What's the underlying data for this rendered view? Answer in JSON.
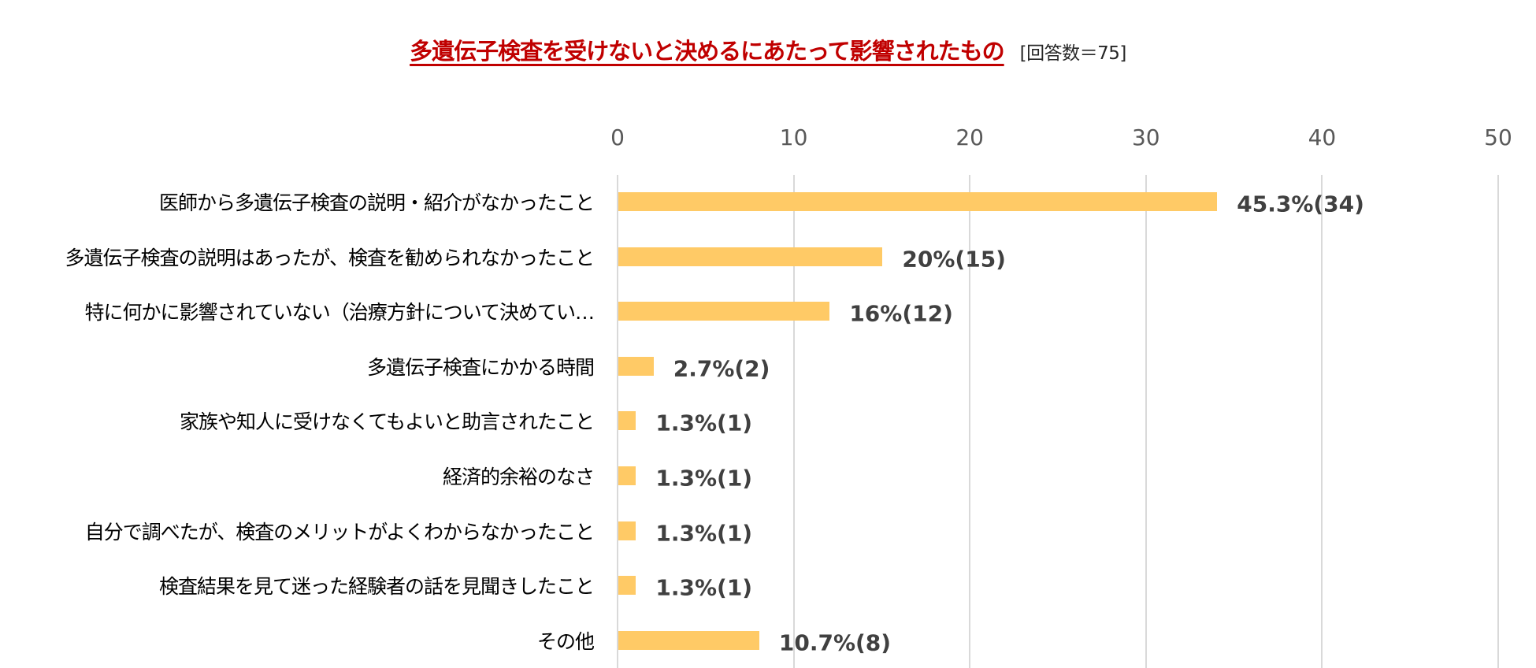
{
  "chart_data": {
    "type": "bar",
    "orientation": "horizontal",
    "title": "多遺伝子検査を受けないと決めるにあたって影響されたもの",
    "subtitle": "[回答数＝75]",
    "xlabel": "",
    "ylabel": "",
    "xlim": [
      0,
      50
    ],
    "xticks": [
      "0",
      "10",
      "20",
      "30",
      "40",
      "50"
    ],
    "grid": true,
    "legend": null,
    "color": "#FFCA66",
    "title_color": "#C00000",
    "categories": [
      "医師から多遺伝子検査の説明・紹介がなかったこと",
      "多遺伝子検査の説明はあったが、検査を勧められなかったこと",
      "特に何かに影響されていない（治療方針について決めてい…",
      "多遺伝子検査にかかる時間",
      "家族や知人に受けなくてもよいと助言されたこと",
      "経済的余裕のなさ",
      "自分で調べたが、検査のメリットがよくわからなかったこと",
      "検査結果を見て迷った経験者の話を見聞きしたこと",
      "その他"
    ],
    "values": [
      34,
      15,
      12,
      2,
      1,
      1,
      1,
      1,
      8
    ],
    "percentages": [
      45.3,
      20,
      16,
      2.7,
      1.3,
      1.3,
      1.3,
      1.3,
      10.7
    ],
    "data_labels": [
      "45.3%(34)",
      "20%(15)",
      "16%(12)",
      "2.7%(2)",
      "1.3%(1)",
      "1.3%(1)",
      "1.3%(1)",
      "1.3%(1)",
      "10.7%(8)"
    ]
  }
}
